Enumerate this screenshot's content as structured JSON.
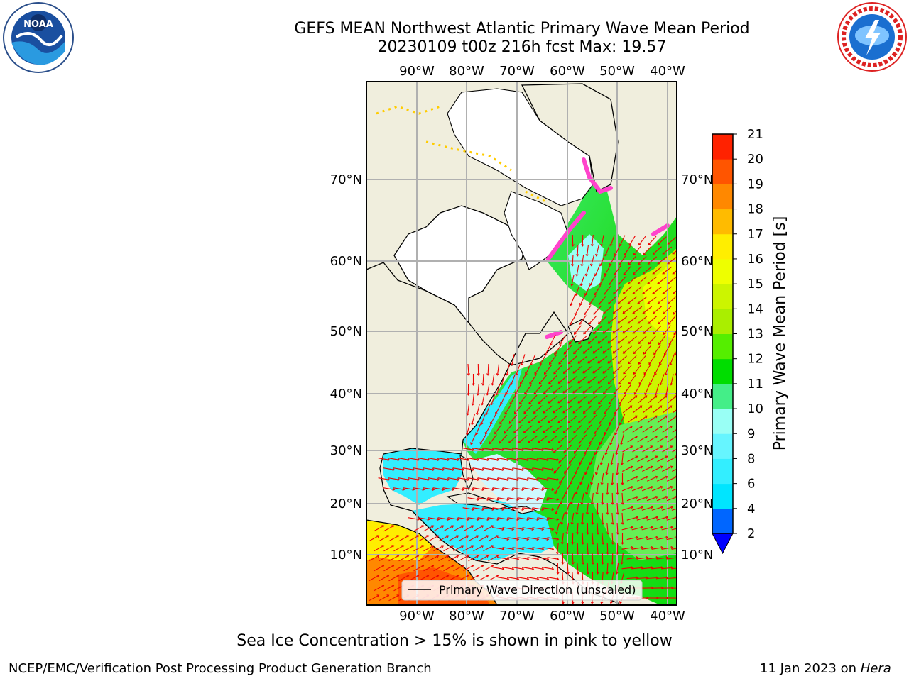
{
  "title_line1": "GEFS MEAN Northwest Atlantic Primary Wave Mean Period",
  "title_line2": "20230109 t00z 216h fcst   Max: 19.57",
  "lon_labels": [
    "90°W",
    "80°W",
    "70°W",
    "60°W",
    "50°W",
    "40°W"
  ],
  "lat_labels": [
    "70°N",
    "60°N",
    "50°N",
    "40°N",
    "30°N",
    "20°N",
    "10°N"
  ],
  "legend": {
    "label": "Primary Wave Direction (unscaled)"
  },
  "colorbar": {
    "label": "Primary Wave Mean Period [s]",
    "ticks": [
      "2",
      "4",
      "6",
      "8",
      "9",
      "10",
      "11",
      "12",
      "13",
      "14",
      "15",
      "16",
      "17",
      "18",
      "19",
      "20",
      "21"
    ],
    "colors": [
      "#0066ff",
      "#00e5ff",
      "#33eeff",
      "#66f5ff",
      "#99fff5",
      "#44ee88",
      "#00dd00",
      "#55ee00",
      "#aaee00",
      "#ccf500",
      "#eeff00",
      "#ffee00",
      "#ffbb00",
      "#ff8800",
      "#ff5500",
      "#ff2200"
    ],
    "under_color": "#0000ff"
  },
  "footer": {
    "seaice_note": "Sea Ice Concentration > 15% is shown in pink to yellow",
    "credit": "NCEP/EMC/Verification Post Processing Product Generation Branch",
    "date": "11 Jan 2023 on",
    "machine": "Hera"
  },
  "colors": {
    "land": "#f0eedd",
    "arrow": "#ee0000",
    "grid": "#b0b0b0",
    "seaice": "#ff44cc"
  }
}
